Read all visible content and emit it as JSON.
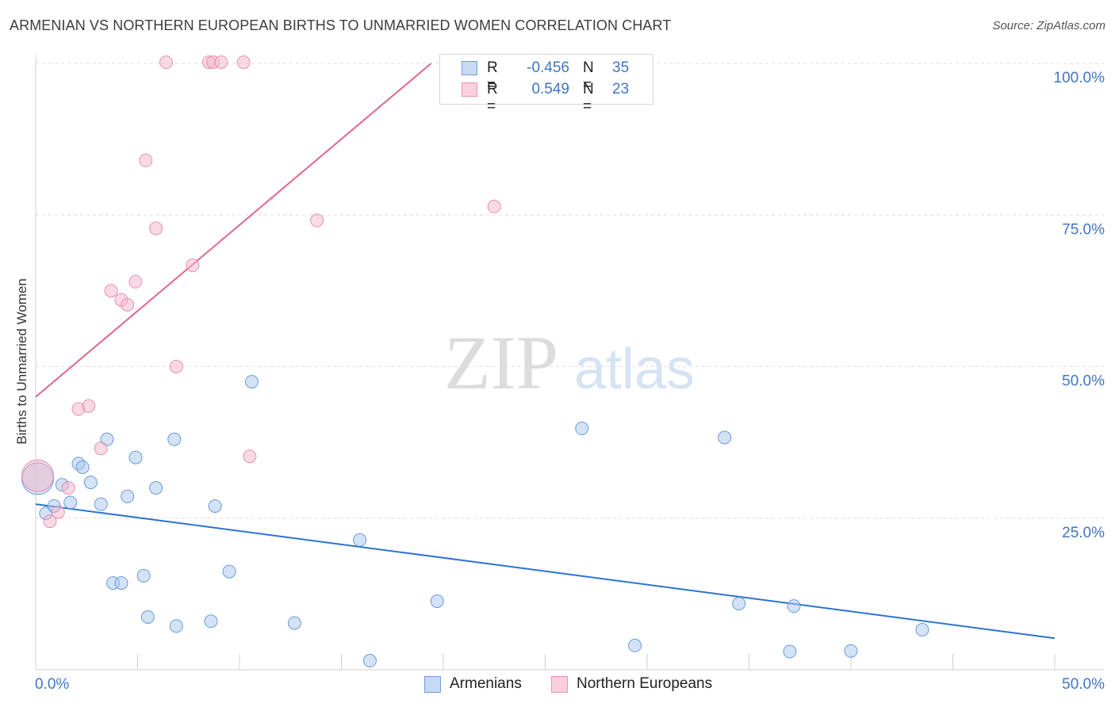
{
  "header": {
    "title": "ARMENIAN VS NORTHERN EUROPEAN BIRTHS TO UNMARRIED WOMEN CORRELATION CHART",
    "source": "Source: ZipAtlas.com"
  },
  "watermark": {
    "zip": "ZIP",
    "atlas": "atlas"
  },
  "legend": {
    "rows": [
      {
        "r_label": "R =",
        "r_value": "-0.456",
        "n_label": "N =",
        "n_value": "35",
        "color": "#a9c6ec"
      },
      {
        "r_label": "R =",
        "r_value": "0.549",
        "n_label": "N =",
        "n_value": "23",
        "color": "#f4b6c9"
      }
    ]
  },
  "bottom_legend": {
    "items": [
      {
        "label": "Armenians",
        "color": "#a9c6ec"
      },
      {
        "label": "Northern Europeans",
        "color": "#f4b6c9"
      }
    ]
  },
  "chart_data": {
    "type": "scatter",
    "title": "ARMENIAN VS NORTHERN EUROPEAN BIRTHS TO UNMARRIED WOMEN CORRELATION CHART",
    "xlabel": "",
    "ylabel": "Births to Unmarried Women",
    "xlim": [
      0,
      50
    ],
    "ylim": [
      0,
      100
    ],
    "x_tick_labels": [
      "0.0%",
      "50.0%"
    ],
    "y_tick_labels": [
      "25.0%",
      "50.0%",
      "75.0%",
      "100.0%"
    ],
    "y_ticks": [
      25,
      50,
      75,
      100
    ],
    "grid": true,
    "series": [
      {
        "name": "Armenians",
        "color": "#a9c6ec",
        "stroke": "#5b93d6",
        "line_color": "#2e72d2",
        "trend": {
          "x": [
            0,
            50
          ],
          "y": [
            27.3,
            5.2
          ]
        },
        "points": [
          {
            "x": 0.1,
            "y": 31.5,
            "size": "large"
          },
          {
            "x": 0.5,
            "y": 25.8
          },
          {
            "x": 0.9,
            "y": 27.0
          },
          {
            "x": 1.3,
            "y": 30.5
          },
          {
            "x": 1.7,
            "y": 27.6
          },
          {
            "x": 2.1,
            "y": 34.0
          },
          {
            "x": 2.3,
            "y": 33.4
          },
          {
            "x": 2.7,
            "y": 30.9
          },
          {
            "x": 3.2,
            "y": 27.3
          },
          {
            "x": 3.5,
            "y": 38.0
          },
          {
            "x": 3.8,
            "y": 14.3
          },
          {
            "x": 4.2,
            "y": 14.3
          },
          {
            "x": 4.5,
            "y": 28.6
          },
          {
            "x": 4.9,
            "y": 35.0
          },
          {
            "x": 5.3,
            "y": 15.5
          },
          {
            "x": 5.5,
            "y": 8.7
          },
          {
            "x": 5.9,
            "y": 30.0
          },
          {
            "x": 6.8,
            "y": 38.0
          },
          {
            "x": 6.9,
            "y": 7.2
          },
          {
            "x": 8.6,
            "y": 8.0
          },
          {
            "x": 8.8,
            "y": 27.0
          },
          {
            "x": 9.5,
            "y": 16.2
          },
          {
            "x": 10.6,
            "y": 47.5
          },
          {
            "x": 12.7,
            "y": 7.7
          },
          {
            "x": 15.9,
            "y": 21.4
          },
          {
            "x": 16.4,
            "y": 1.5
          },
          {
            "x": 19.7,
            "y": 11.3
          },
          {
            "x": 26.8,
            "y": 39.8
          },
          {
            "x": 29.4,
            "y": 4.0
          },
          {
            "x": 33.8,
            "y": 38.3
          },
          {
            "x": 34.5,
            "y": 10.9
          },
          {
            "x": 37.0,
            "y": 3.0
          },
          {
            "x": 37.2,
            "y": 10.5
          },
          {
            "x": 40.0,
            "y": 3.1
          },
          {
            "x": 43.5,
            "y": 6.6
          }
        ]
      },
      {
        "name": "Northern Europeans",
        "color": "#f4b6c9",
        "stroke": "#e586a4",
        "line_color": "#e0668c",
        "trend": {
          "x": [
            0,
            19.4
          ],
          "y": [
            45.0,
            100
          ]
        },
        "points": [
          {
            "x": 0.1,
            "y": 32.0,
            "size": "large"
          },
          {
            "x": 0.7,
            "y": 24.5
          },
          {
            "x": 1.1,
            "y": 26.0
          },
          {
            "x": 1.6,
            "y": 30.0
          },
          {
            "x": 2.1,
            "y": 43.0
          },
          {
            "x": 2.6,
            "y": 43.5
          },
          {
            "x": 3.2,
            "y": 36.5
          },
          {
            "x": 3.7,
            "y": 62.5
          },
          {
            "x": 4.2,
            "y": 61.0
          },
          {
            "x": 4.5,
            "y": 60.2
          },
          {
            "x": 4.9,
            "y": 64.0
          },
          {
            "x": 5.4,
            "y": 84.0
          },
          {
            "x": 5.9,
            "y": 72.8
          },
          {
            "x": 6.4,
            "y": 100.2
          },
          {
            "x": 6.9,
            "y": 50.0
          },
          {
            "x": 7.7,
            "y": 66.7
          },
          {
            "x": 8.5,
            "y": 100.2
          },
          {
            "x": 8.7,
            "y": 100.2
          },
          {
            "x": 9.1,
            "y": 100.2
          },
          {
            "x": 10.2,
            "y": 100.2
          },
          {
            "x": 10.5,
            "y": 35.2
          },
          {
            "x": 13.8,
            "y": 74.1
          },
          {
            "x": 22.5,
            "y": 76.4
          }
        ]
      }
    ]
  }
}
